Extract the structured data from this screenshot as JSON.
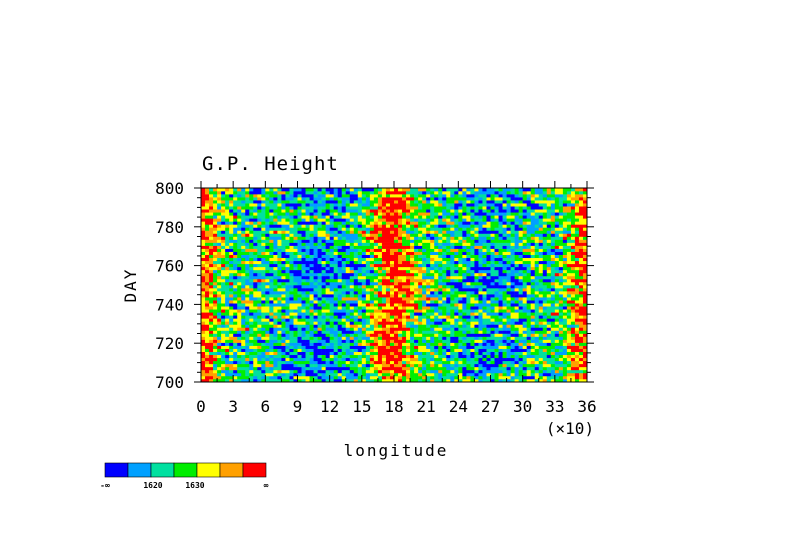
{
  "chart_data": {
    "type": "heatmap",
    "title": "G.P. Height",
    "xlabel": "longitude",
    "xscale_note": "(×10)",
    "ylabel": "DAY",
    "x_ticks": [
      "0",
      "3",
      "6",
      "9",
      "12",
      "15",
      "18",
      "21",
      "24",
      "27",
      "30",
      "33",
      "36"
    ],
    "y_ticks": [
      "700",
      "720",
      "740",
      "760",
      "780",
      "800"
    ],
    "xlim": [
      0,
      36
    ],
    "ylim": [
      700,
      800
    ],
    "palette": [
      "#0000ff",
      "#00a0ff",
      "#00e0a0",
      "#00ee00",
      "#ffff00",
      "#ffa000",
      "#ff0000"
    ],
    "colorbar_labels": [
      "-∞",
      "1620",
      "1630",
      "∞"
    ],
    "bands": [
      {
        "x_center": 0.5,
        "description": "high values (red/orange) near longitude 0 and 36"
      },
      {
        "x_center": 18,
        "description": "high values (red) ridge near longitude 18, strongest days 710-790"
      }
    ]
  }
}
